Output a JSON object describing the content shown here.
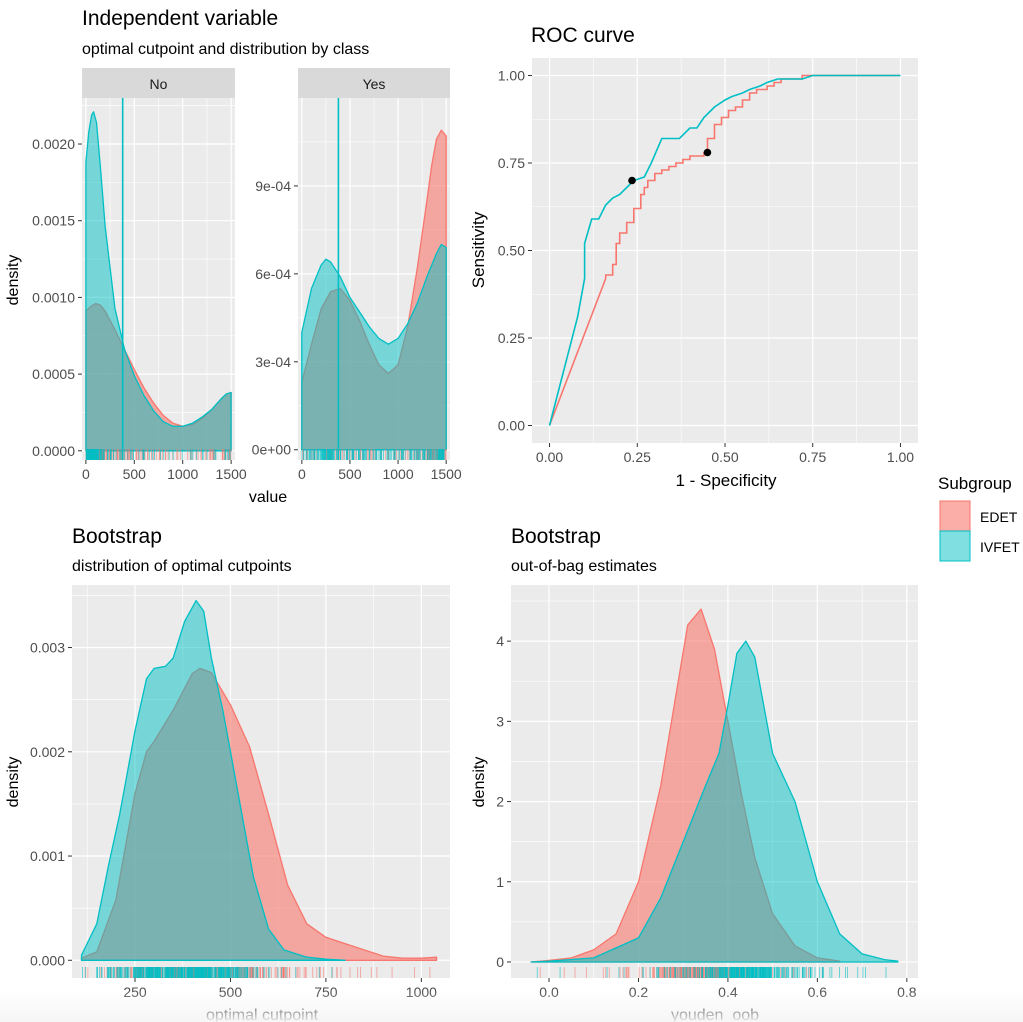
{
  "colors": {
    "edet": "#F8766D",
    "ivfet": "#00BFC4",
    "panel_bg": "#EBEBEB",
    "strip_bg": "#D9D9D9",
    "grid": "#FFFFFF",
    "text": "#000000",
    "tick_text": "#4D4D4D"
  },
  "legend": {
    "title": "Subgroup",
    "items": [
      {
        "label": "EDET",
        "color": "#F8766D"
      },
      {
        "label": "IVFET",
        "color": "#00BFC4"
      }
    ]
  },
  "chart_data": [
    {
      "id": "independent-variable",
      "type": "area",
      "title": "Independent variable",
      "subtitle": "optimal cutpoint and distribution by class",
      "xlabel": "value",
      "ylabel": "density",
      "grid": true,
      "facets": [
        {
          "label": "No",
          "xlim": [
            -40,
            1540
          ],
          "ylim": [
            -6e-05,
            0.0023
          ],
          "x_ticks": [
            0,
            500,
            1000,
            1500
          ],
          "x_tick_labels": [
            "0",
            "500",
            "1000",
            "1500"
          ],
          "y_ticks": [
            0,
            0.0005,
            0.001,
            0.0015,
            0.002
          ],
          "y_tick_labels": [
            "0.0000",
            "0.0005",
            "0.0010",
            "0.0015",
            "0.0020"
          ],
          "cutpoint": 380,
          "series": [
            {
              "name": "EDET",
              "x": [
                0,
                50,
                100,
                150,
                200,
                300,
                400,
                500,
                600,
                700,
                800,
                900,
                1000,
                1100,
                1200,
                1300,
                1400,
                1450,
                1500
              ],
              "y": [
                0.00091,
                0.00094,
                0.00096,
                0.00095,
                0.00091,
                0.00079,
                0.00066,
                0.00053,
                0.00041,
                0.00031,
                0.00023,
                0.00018,
                0.00016,
                0.00017,
                0.00021,
                0.00027,
                0.00034,
                0.00037,
                0.00038
              ]
            },
            {
              "name": "IVFET",
              "x": [
                0,
                30,
                60,
                80,
                110,
                150,
                200,
                300,
                400,
                500,
                600,
                700,
                800,
                900,
                1000,
                1100,
                1200,
                1300,
                1400,
                1450,
                1500
              ],
              "y": [
                0.00188,
                0.00208,
                0.00219,
                0.00221,
                0.00214,
                0.00185,
                0.00146,
                0.00093,
                0.00066,
                0.00049,
                0.00036,
                0.00026,
                0.00019,
                0.00016,
                0.00016,
                0.00018,
                0.00022,
                0.00027,
                0.00034,
                0.00037,
                0.00038
              ]
            }
          ]
        },
        {
          "label": "Yes",
          "xlim": [
            -40,
            1540
          ],
          "ylim": [
            -3.5e-05,
            0.0012
          ],
          "x_ticks": [
            0,
            500,
            1000,
            1500
          ],
          "x_tick_labels": [
            "0",
            "500",
            "1000",
            "1500"
          ],
          "y_ticks": [
            0,
            0.0003,
            0.0006,
            0.0009
          ],
          "y_tick_labels": [
            "0e+00",
            "3e-04",
            "6e-04",
            "9e-04"
          ],
          "cutpoint": 380,
          "series": [
            {
              "name": "EDET",
              "x": [
                0,
                100,
                200,
                300,
                400,
                500,
                600,
                700,
                800,
                900,
                1000,
                1100,
                1200,
                1300,
                1350,
                1400,
                1450,
                1500
              ],
              "y": [
                0.00023,
                0.00036,
                0.00048,
                0.00054,
                0.00055,
                0.00051,
                0.00044,
                0.00036,
                0.00029,
                0.00026,
                0.00029,
                0.00042,
                0.00062,
                0.00085,
                0.00097,
                0.00106,
                0.00109,
                0.00107
              ]
            },
            {
              "name": "IVFET",
              "x": [
                0,
                100,
                200,
                250,
                300,
                400,
                500,
                600,
                700,
                800,
                900,
                1000,
                1100,
                1200,
                1300,
                1400,
                1450,
                1500
              ],
              "y": [
                0.0004,
                0.00055,
                0.00063,
                0.00065,
                0.00064,
                0.00059,
                0.00052,
                0.00047,
                0.00042,
                0.00038,
                0.00036,
                0.00038,
                0.00043,
                0.0005,
                0.00059,
                0.00067,
                0.0007,
                0.00069
              ]
            }
          ]
        }
      ]
    },
    {
      "id": "roc-curve",
      "type": "line",
      "title": "ROC curve",
      "xlabel": "1 - Specificity",
      "ylabel": "Sensitivity",
      "xlim": [
        -0.05,
        1.05
      ],
      "ylim": [
        -0.05,
        1.05
      ],
      "grid": true,
      "x_ticks": [
        0,
        0.25,
        0.5,
        0.75,
        1
      ],
      "x_tick_labels": [
        "0.00",
        "0.25",
        "0.50",
        "0.75",
        "1.00"
      ],
      "y_ticks": [
        0,
        0.25,
        0.5,
        0.75,
        1
      ],
      "y_tick_labels": [
        "0.00",
        "0.25",
        "0.50",
        "0.75",
        "1.00"
      ],
      "series": [
        {
          "name": "EDET",
          "x": [
            0,
            0.16,
            0.16,
            0.18,
            0.18,
            0.19,
            0.19,
            0.2,
            0.2,
            0.22,
            0.22,
            0.24,
            0.24,
            0.26,
            0.26,
            0.27,
            0.27,
            0.28,
            0.28,
            0.3,
            0.3,
            0.32,
            0.32,
            0.34,
            0.34,
            0.36,
            0.36,
            0.38,
            0.38,
            0.4,
            0.4,
            0.42,
            0.42,
            0.44,
            0.44,
            0.45,
            0.45,
            0.47,
            0.47,
            0.49,
            0.49,
            0.51,
            0.51,
            0.53,
            0.53,
            0.55,
            0.55,
            0.57,
            0.57,
            0.59,
            0.59,
            0.62,
            0.62,
            0.64,
            0.64,
            0.66,
            0.66,
            0.72,
            0.72,
            0.76,
            0.76,
            0.8,
            0.8,
            1.0
          ],
          "y": [
            0,
            0.42,
            0.43,
            0.43,
            0.46,
            0.46,
            0.52,
            0.52,
            0.55,
            0.55,
            0.58,
            0.58,
            0.62,
            0.62,
            0.66,
            0.66,
            0.68,
            0.68,
            0.7,
            0.7,
            0.72,
            0.72,
            0.73,
            0.73,
            0.74,
            0.74,
            0.75,
            0.75,
            0.76,
            0.76,
            0.77,
            0.77,
            0.77,
            0.77,
            0.78,
            0.78,
            0.82,
            0.82,
            0.86,
            0.86,
            0.88,
            0.88,
            0.9,
            0.9,
            0.91,
            0.91,
            0.93,
            0.93,
            0.95,
            0.95,
            0.96,
            0.96,
            0.97,
            0.97,
            0.98,
            0.98,
            0.99,
            0.99,
            1.0,
            1.0,
            1.0,
            1.0,
            1.0,
            1.0
          ]
        },
        {
          "name": "IVFET",
          "x": [
            0,
            0.08,
            0.08,
            0.1,
            0.1,
            0.12,
            0.12,
            0.14,
            0.14,
            0.16,
            0.16,
            0.18,
            0.18,
            0.2,
            0.2,
            0.22,
            0.22,
            0.24,
            0.24,
            0.27,
            0.27,
            0.29,
            0.29,
            0.32,
            0.32,
            0.37,
            0.37,
            0.4,
            0.4,
            0.42,
            0.42,
            0.44,
            0.44,
            0.46,
            0.46,
            0.47,
            0.47,
            0.5,
            0.5,
            0.52,
            0.52,
            0.55,
            0.55,
            0.57,
            0.57,
            0.6,
            0.6,
            0.62,
            0.62,
            0.65,
            0.65,
            0.72,
            0.72,
            0.75,
            0.75,
            1.0
          ],
          "y": [
            0,
            0.31,
            0.31,
            0.42,
            0.52,
            0.59,
            0.59,
            0.59,
            0.59,
            0.63,
            0.63,
            0.65,
            0.65,
            0.66,
            0.66,
            0.68,
            0.68,
            0.7,
            0.7,
            0.71,
            0.71,
            0.75,
            0.75,
            0.82,
            0.82,
            0.82,
            0.82,
            0.85,
            0.85,
            0.85,
            0.85,
            0.88,
            0.88,
            0.9,
            0.9,
            0.91,
            0.91,
            0.93,
            0.93,
            0.94,
            0.94,
            0.95,
            0.95,
            0.96,
            0.96,
            0.97,
            0.97,
            0.98,
            0.98,
            0.99,
            0.99,
            0.99,
            0.99,
            1.0,
            1.0,
            1.0
          ]
        }
      ],
      "points": [
        {
          "x": 0.235,
          "y": 0.7
        },
        {
          "x": 0.45,
          "y": 0.78
        }
      ]
    },
    {
      "id": "bootstrap-cutpoints",
      "type": "area",
      "title": "Bootstrap",
      "subtitle": "distribution of optimal cutpoints",
      "xlabel": "optimal cutpoint",
      "ylabel": "density",
      "xlim": [
        85,
        1075
      ],
      "ylim": [
        -0.00017,
        0.0036
      ],
      "grid": true,
      "x_ticks": [
        250,
        500,
        750,
        1000
      ],
      "x_tick_labels": [
        "250",
        "500",
        "750",
        "1000"
      ],
      "y_ticks": [
        0,
        0.001,
        0.002,
        0.003
      ],
      "y_tick_labels": [
        "0.000",
        "0.001",
        "0.002",
        "0.003"
      ],
      "series": [
        {
          "name": "EDET",
          "x": [
            110,
            150,
            200,
            250,
            280,
            300,
            350,
            400,
            420,
            450,
            500,
            550,
            600,
            650,
            700,
            750,
            800,
            850,
            900,
            950,
            1000,
            1040
          ],
          "y": [
            2e-05,
            8e-05,
            0.00058,
            0.0016,
            0.002,
            0.0021,
            0.0024,
            0.00275,
            0.0028,
            0.00276,
            0.00245,
            0.00205,
            0.0014,
            0.00072,
            0.00035,
            0.00022,
            0.00016,
            0.0001,
            4e-05,
            2e-05,
            2e-05,
            3e-05
          ]
        },
        {
          "name": "IVFET",
          "x": [
            110,
            150,
            180,
            210,
            250,
            280,
            300,
            330,
            350,
            380,
            410,
            430,
            450,
            480,
            500,
            530,
            560,
            600,
            640,
            700,
            750,
            800
          ],
          "y": [
            5e-05,
            0.00035,
            0.0009,
            0.0014,
            0.0022,
            0.0027,
            0.0028,
            0.00282,
            0.0029,
            0.00325,
            0.00345,
            0.00335,
            0.0029,
            0.0024,
            0.002,
            0.0014,
            0.0008,
            0.0003,
            0.0001,
            3e-05,
            1e-05,
            0.0
          ]
        }
      ]
    },
    {
      "id": "bootstrap-oob",
      "type": "area",
      "title": "Bootstrap",
      "subtitle": "out-of-bag estimates",
      "xlabel": "youden_oob",
      "ylabel": "density",
      "xlim": [
        -0.085,
        0.825
      ],
      "ylim": [
        -0.2,
        4.7
      ],
      "grid": true,
      "x_ticks": [
        0,
        0.2,
        0.4,
        0.6,
        0.8
      ],
      "x_tick_labels": [
        "0.0",
        "0.2",
        "0.4",
        "0.6",
        "0.8"
      ],
      "y_ticks": [
        0,
        1,
        2,
        3,
        4
      ],
      "y_tick_labels": [
        "0",
        "1",
        "2",
        "3",
        "4"
      ],
      "series": [
        {
          "name": "EDET",
          "x": [
            -0.04,
            0.0,
            0.05,
            0.1,
            0.15,
            0.2,
            0.25,
            0.28,
            0.31,
            0.34,
            0.37,
            0.4,
            0.43,
            0.46,
            0.5,
            0.55,
            0.6,
            0.65
          ],
          "y": [
            0.0,
            0.02,
            0.05,
            0.15,
            0.35,
            1.0,
            2.2,
            3.2,
            4.2,
            4.4,
            3.9,
            3.0,
            2.1,
            1.3,
            0.6,
            0.2,
            0.05,
            0.01
          ]
        },
        {
          "name": "IVFET",
          "x": [
            -0.04,
            0.0,
            0.1,
            0.2,
            0.25,
            0.3,
            0.35,
            0.38,
            0.4,
            0.42,
            0.44,
            0.46,
            0.48,
            0.5,
            0.55,
            0.6,
            0.65,
            0.7,
            0.75,
            0.78
          ],
          "y": [
            0.0,
            0.01,
            0.05,
            0.3,
            0.8,
            1.5,
            2.2,
            2.6,
            3.2,
            3.85,
            4.0,
            3.8,
            3.2,
            2.6,
            2.0,
            1.0,
            0.35,
            0.1,
            0.03,
            0.01
          ]
        }
      ]
    }
  ]
}
